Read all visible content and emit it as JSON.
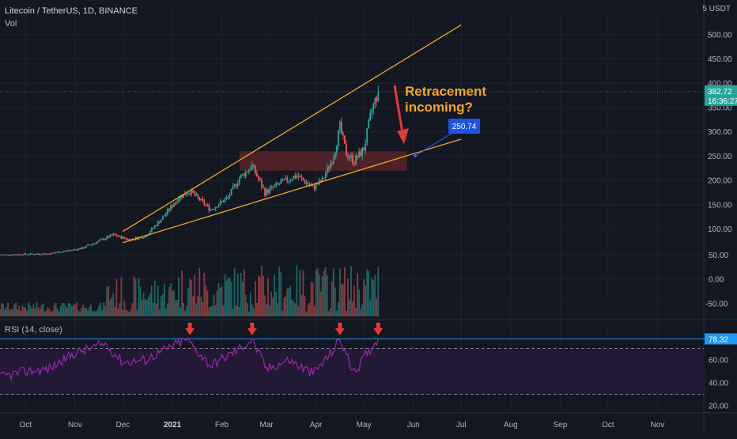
{
  "header": {
    "symbol_line": "Litecoin / TetherUS, 1D, BINANCE",
    "vol_label": "Vol",
    "currency": "5 USDT"
  },
  "rsi_panel": {
    "label": "RSI (14, close)",
    "value_tag": "78.32"
  },
  "annotation": {
    "text_line1": "Retracement",
    "text_line2": "incoming?",
    "target_label": "250.74"
  },
  "price_tag": {
    "price": "382.72",
    "countdown": "16:36:27"
  },
  "colors": {
    "background": "#131722",
    "grid": "#1e222d",
    "up": "#26a69a",
    "down": "#ef5350",
    "trendline": "#f5a623",
    "annotation_text": "#f5a623",
    "arrow": "#e53935",
    "rsi": "#9c27b0",
    "rsi_band": "#2a1b3d",
    "zone_fill": "#7f2a2a",
    "target_box": "#1e53e5"
  },
  "chart_data": [
    {
      "type": "candlestick",
      "title": "Litecoin / TetherUS, 1D, BINANCE",
      "y_axis_ticks": [
        "500.00",
        "450.00",
        "400.00",
        "350.00",
        "300.00",
        "250.00",
        "200.00",
        "150.00",
        "100.00"
      ],
      "ylim": [
        50,
        520
      ],
      "x_axis_ticks": [
        "Oct",
        "Nov",
        "Dec",
        "2021",
        "Feb",
        "Mar",
        "Apr",
        "May",
        "Jun",
        "Jul",
        "Aug",
        "Sep",
        "Oct",
        "Nov"
      ],
      "xlim": [
        "2020-09-15",
        "2021-11-30"
      ],
      "close_series": [
        {
          "x": "2020-09-15",
          "y": 47
        },
        {
          "x": "2020-10-15",
          "y": 49
        },
        {
          "x": "2020-11-05",
          "y": 60
        },
        {
          "x": "2020-11-25",
          "y": 88
        },
        {
          "x": "2020-12-05",
          "y": 78
        },
        {
          "x": "2020-12-15",
          "y": 85
        },
        {
          "x": "2020-12-25",
          "y": 120
        },
        {
          "x": "2021-01-05",
          "y": 165
        },
        {
          "x": "2021-01-12",
          "y": 178
        },
        {
          "x": "2021-01-25",
          "y": 140
        },
        {
          "x": "2021-02-05",
          "y": 165
        },
        {
          "x": "2021-02-12",
          "y": 205
        },
        {
          "x": "2021-02-20",
          "y": 230
        },
        {
          "x": "2021-02-28",
          "y": 175
        },
        {
          "x": "2021-03-10",
          "y": 195
        },
        {
          "x": "2021-03-20",
          "y": 210
        },
        {
          "x": "2021-03-30",
          "y": 185
        },
        {
          "x": "2021-04-05",
          "y": 200
        },
        {
          "x": "2021-04-12",
          "y": 250
        },
        {
          "x": "2021-04-16",
          "y": 310
        },
        {
          "x": "2021-04-20",
          "y": 255
        },
        {
          "x": "2021-04-25",
          "y": 240
        },
        {
          "x": "2021-05-01",
          "y": 265
        },
        {
          "x": "2021-05-06",
          "y": 345
        },
        {
          "x": "2021-05-10",
          "y": 382.72
        }
      ],
      "current_price": 382.72,
      "zone": {
        "from": "2021-02-12",
        "to": "2021-05-28",
        "low": 220,
        "high": 260
      },
      "trendlines": [
        {
          "name": "upper",
          "from": {
            "x": "2020-12-01",
            "y": 95
          },
          "to": {
            "x": "2021-07-01",
            "y": 520
          }
        },
        {
          "name": "lower",
          "from": {
            "x": "2020-12-01",
            "y": 72
          },
          "to": {
            "x": "2021-07-01",
            "y": 285
          }
        }
      ],
      "target_point": {
        "x": "2021-05-28",
        "y": 250.74
      }
    },
    {
      "type": "bar",
      "title": "Vol",
      "y_axis_ticks": [
        "50.00",
        "0.00",
        "-50.00"
      ]
    },
    {
      "type": "line",
      "title": "RSI (14, close)",
      "y_axis_ticks": [
        "60.00",
        "40.00",
        "20.00"
      ],
      "ylim": [
        10,
        90
      ],
      "bands": [
        30,
        70
      ],
      "values_by_date": [
        {
          "x": "2020-09-15",
          "y": 45
        },
        {
          "x": "2020-10-01",
          "y": 50
        },
        {
          "x": "2020-10-15",
          "y": 52
        },
        {
          "x": "2020-11-01",
          "y": 66
        },
        {
          "x": "2020-11-20",
          "y": 74
        },
        {
          "x": "2020-12-01",
          "y": 58
        },
        {
          "x": "2020-12-15",
          "y": 60
        },
        {
          "x": "2021-01-01",
          "y": 72
        },
        {
          "x": "2021-01-10",
          "y": 78
        },
        {
          "x": "2021-01-25",
          "y": 55
        },
        {
          "x": "2021-02-10",
          "y": 68
        },
        {
          "x": "2021-02-20",
          "y": 78
        },
        {
          "x": "2021-03-01",
          "y": 52
        },
        {
          "x": "2021-03-15",
          "y": 60
        },
        {
          "x": "2021-03-30",
          "y": 48
        },
        {
          "x": "2021-04-10",
          "y": 65
        },
        {
          "x": "2021-04-16",
          "y": 78
        },
        {
          "x": "2021-04-25",
          "y": 48
        },
        {
          "x": "2021-05-01",
          "y": 62
        },
        {
          "x": "2021-05-10",
          "y": 78.32
        }
      ],
      "current_value": 78.32,
      "marker_dates": [
        "2021-01-12",
        "2021-02-20",
        "2021-04-16",
        "2021-05-10"
      ]
    }
  ]
}
